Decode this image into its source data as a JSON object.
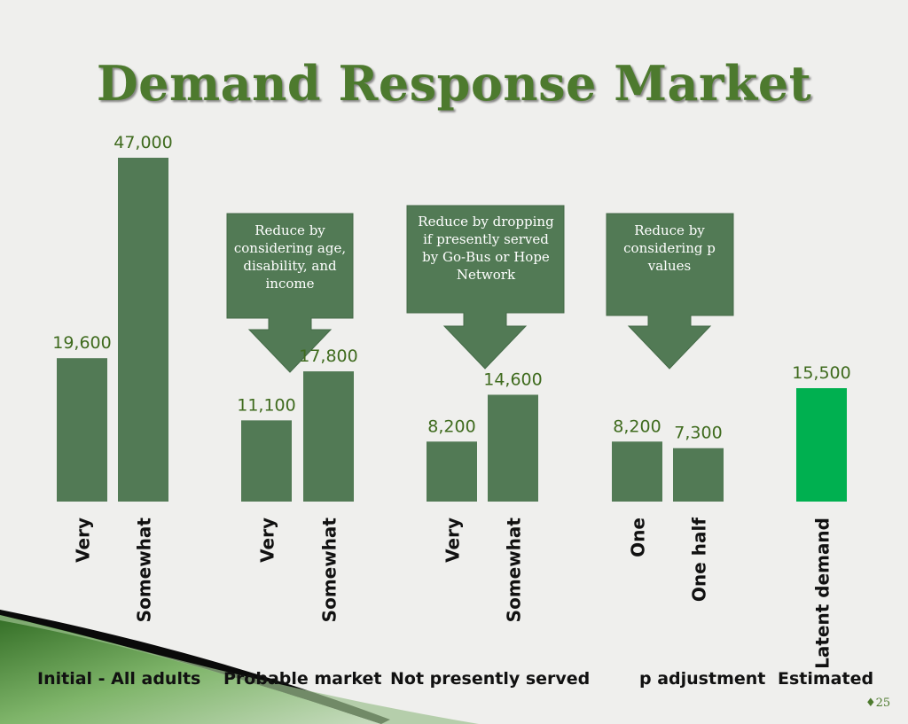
{
  "title": "Demand Response Market",
  "colors": {
    "bar": "#527a55",
    "highlight_bar": "#00b050",
    "value_label": "#3f6b1e",
    "callout": "#527a55",
    "callout_text": "#ffffff"
  },
  "chart_data": {
    "type": "bar",
    "title": "Demand Response Market",
    "categories": [
      "Very",
      "Somewhat",
      "Very",
      "Somewhat",
      "Very",
      "Somewhat",
      "One",
      "One half",
      "Latent demand"
    ],
    "values": [
      19600,
      47000,
      11100,
      17800,
      8200,
      14600,
      8200,
      7300,
      15500
    ],
    "value_labels": [
      "19,600",
      "47,000",
      "11,100",
      "17,800",
      "8,200",
      "14,600",
      "8,200",
      "7,300",
      "15,500"
    ],
    "groups": [
      {
        "label": "Initial - All adults",
        "bars": [
          0,
          1
        ]
      },
      {
        "label": "Probable market",
        "bars": [
          2,
          3
        ]
      },
      {
        "label": "Not presently served",
        "bars": [
          4,
          5
        ]
      },
      {
        "label": "p adjustment",
        "bars": [
          6,
          7
        ]
      },
      {
        "label": "Estimated",
        "bars": [
          8
        ]
      }
    ],
    "highlight_bar": 8,
    "ylim": [
      0,
      47000
    ],
    "xlabel": "",
    "ylabel": "",
    "grid": false,
    "legend": "none"
  },
  "callouts": [
    {
      "text": "Reduce by considering age, disability, and income"
    },
    {
      "text": "Reduce by dropping if presently served by Go-Bus or Hope Network"
    },
    {
      "text": "Reduce by considering p values"
    }
  ],
  "page_number": "♦25"
}
